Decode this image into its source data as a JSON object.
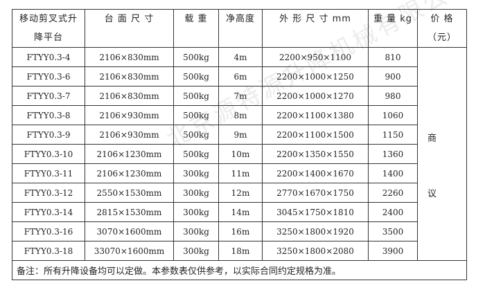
{
  "headers": [
    "移动剪叉式升降平台",
    "台 面 尺 寸",
    "载 重",
    "净高度",
    "外 形 尺 寸 mm",
    "重 量 kg",
    "价 格（元）"
  ],
  "header_lines": {
    "model_1": "移动剪叉式升",
    "model_2": "降平台",
    "price_1": "价 格",
    "price_2": "（元）"
  },
  "rows": [
    {
      "model": "FTYY0.3-4",
      "platform": "2106×830mm",
      "load": "500kg",
      "height": "4m",
      "size": "2200×950×1100",
      "weight": "810"
    },
    {
      "model": "FTYY0.3-6",
      "platform": "2106×830mm",
      "load": "500kg",
      "height": "6m",
      "size": "2200×1000×1250",
      "weight": "900"
    },
    {
      "model": "FTYY0.3-7",
      "platform": "2106×830mm",
      "load": "500kg",
      "height": "7m",
      "size": "2200×1000×1270",
      "weight": "980"
    },
    {
      "model": "FTYY0.3-8",
      "platform": "2106×930mm",
      "load": "500kg",
      "height": "8m",
      "size": "2200×1100×1380",
      "weight": "1060"
    },
    {
      "model": "FTYY0.3-9",
      "platform": "2106×930mm",
      "load": "500kg",
      "height": "9m",
      "size": "2200×1100×1500",
      "weight": "1150"
    },
    {
      "model": "FTYY0.3-10",
      "platform": "2106×1230mm",
      "load": "500kg",
      "height": "10m",
      "size": "2200×1350×1550",
      "weight": "1360"
    },
    {
      "model": "FTYY0.3-11",
      "platform": "2106×1230mm",
      "load": "300kg",
      "height": "11m",
      "size": "2200×1400×1670",
      "weight": "1400"
    },
    {
      "model": "FTYY0.3-12",
      "platform": "2550×1530mm",
      "load": "300kg",
      "height": "12m",
      "size": "2770×1670×1750",
      "weight": "2260"
    },
    {
      "model": "FTYY0.3-14",
      "platform": "2815×1530mm",
      "load": "300kg",
      "height": "14m",
      "size": "3045×1750×1810",
      "weight": "2400"
    },
    {
      "model": "FTYY0.3-16",
      "platform": "3070×1600mm",
      "load": "300kg",
      "height": "16m",
      "size": "3250×1800×1920",
      "weight": "3500"
    },
    {
      "model": "FTYY0.3-18",
      "platform": "33070×1600mm",
      "load": "300kg",
      "height": "18m",
      "size": "3250×1800×2080",
      "weight": "3900"
    }
  ],
  "price": {
    "char_1": "商",
    "char_2": "议"
  },
  "note": "备注：所有升降设备均可以定做。本参数表仅供参考，以实际合同约定规格为准。",
  "watermark": "北京源特源升降机械有限公司"
}
